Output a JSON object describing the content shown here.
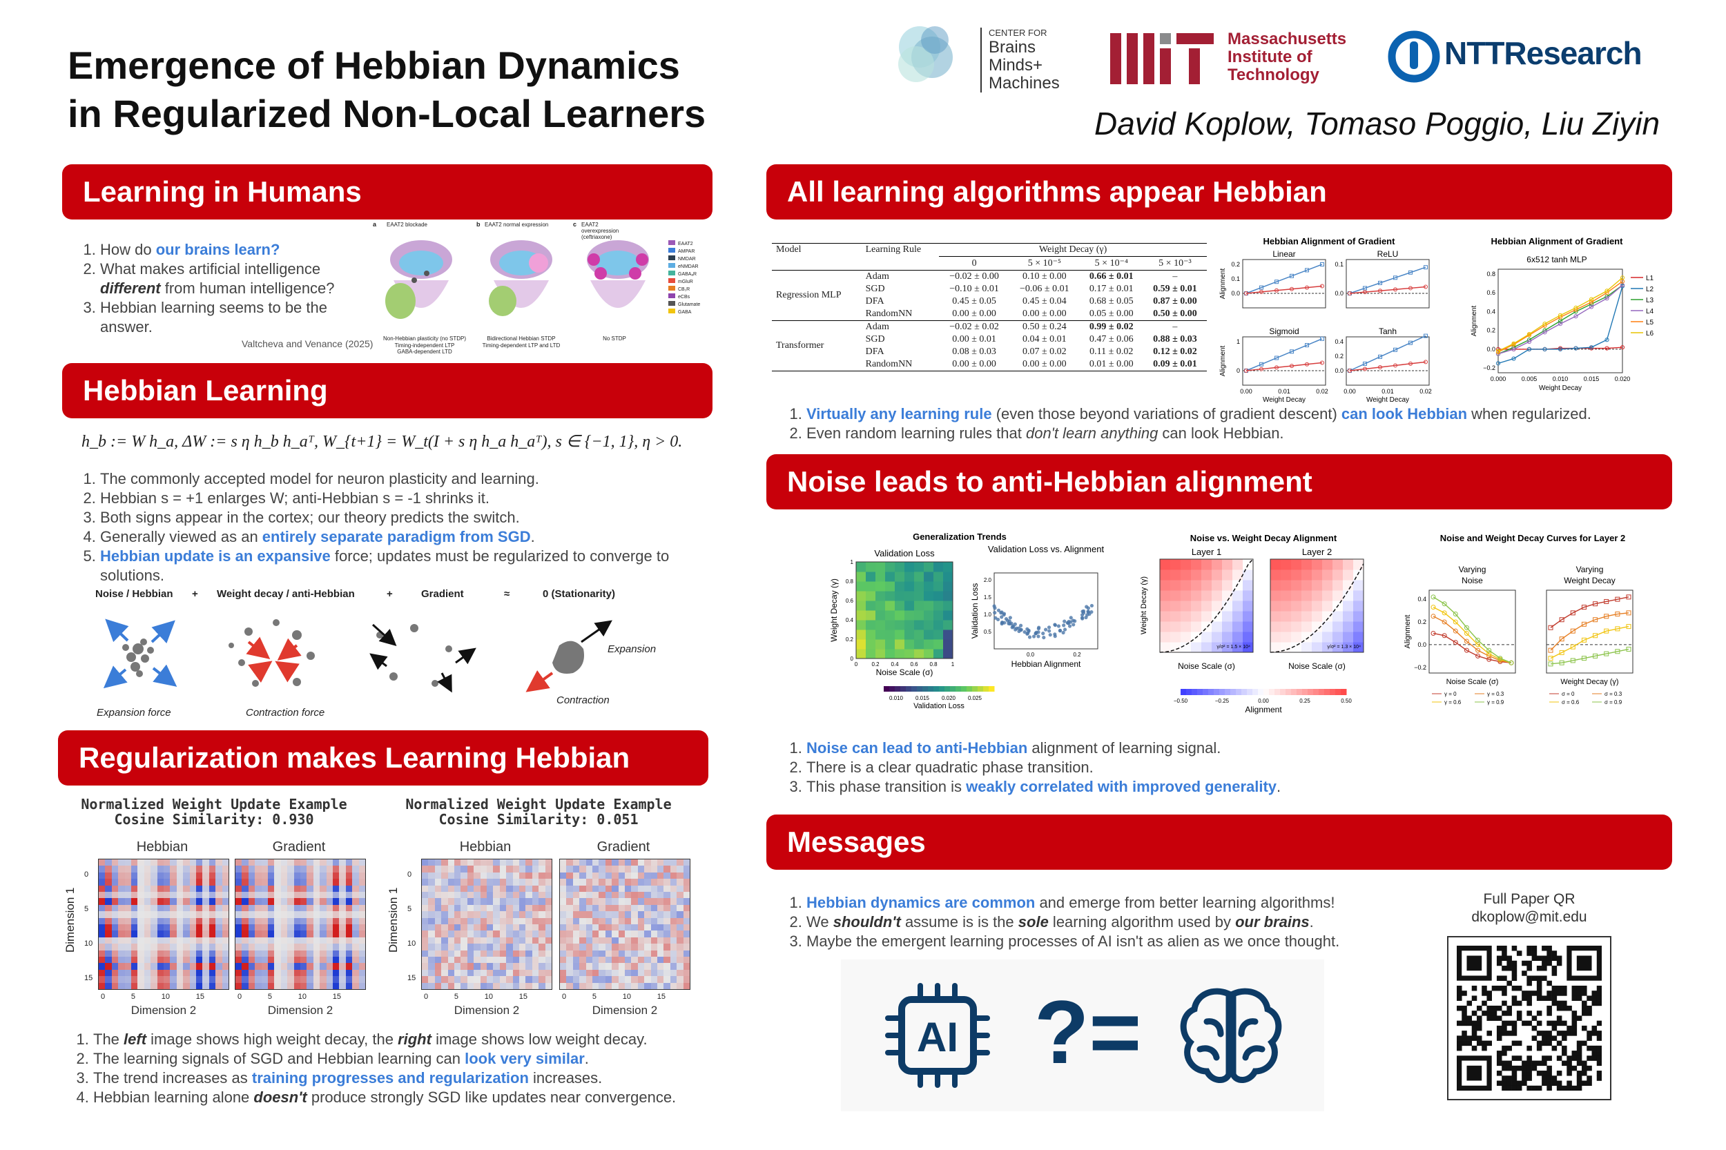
{
  "header": {
    "title_line1": "Emergence of Hebbian Dynamics",
    "title_line2": "in Regularized Non-Local Learners",
    "authors": "David Koplow, Tomaso Poggio, Liu Ziyin",
    "cbmm": [
      "CENTER FOR",
      "Brains",
      "Minds+",
      "Machines"
    ],
    "mit": [
      "Massachusetts",
      "Institute of",
      "Technology"
    ],
    "ntt": "NTTResearch"
  },
  "humans": {
    "heading": "Learning in Humans",
    "items": [
      {
        "pre": "How do ",
        "hl": "our brains learn?",
        "post": ""
      },
      {
        "pre": "What makes artificial intelligence ",
        "bi": "different",
        "post": " from human intelligence?"
      },
      {
        "pre": "Hebbian learning seems to be the answer.",
        "post": ""
      }
    ],
    "fig_labels": [
      "a",
      "b",
      "c"
    ],
    "fig_titles": [
      "EAAT2 blockade",
      "EAAT2 normal expression",
      "EAAT2 overexpression (ceftriaxone)"
    ],
    "fig_captions": [
      "Non-Hebbian plasticity (no STDP)",
      "Bidirectional Hebbian STDP",
      "No STDP"
    ],
    "fig_sub": [
      "Timing-independent LTP",
      "Timing-dependent LTP and LTD"
    ],
    "fig_sub2": "GABA-dependent LTD",
    "legend": [
      "EAAT2",
      "AMPAR",
      "NMDAR",
      "eNMDAR",
      "GABAₐR",
      "mGluR",
      "CB₁R",
      "eCBs",
      "Glutamate",
      "GABA"
    ],
    "citation": "Valtcheva and Venance (2025)"
  },
  "hebbian": {
    "heading": "Hebbian Learning",
    "equation": "h_b := W h_a,   ΔW := s η h_b h_aᵀ,   W_{t+1} = W_t(I + s η h_a h_aᵀ),   s ∈ {−1, 1}, η > 0.",
    "items": [
      "The commonly accepted model for neuron plasticity and learning.",
      "Hebbian s = +1 enlarges W; anti-Hebbian s = -1 shrinks it.",
      "Both signs appear in the cortex; our theory predicts the switch."
    ],
    "item4_pre": "Generally viewed as an ",
    "item4_hl": "entirely separate paradigm from SGD",
    "item4_post": ".",
    "item5_hl": "Hebbian update is an expansive",
    "item5_post": " force; updates must be regularized to converge to solutions.",
    "diagram": {
      "labels": [
        "Noise / Hebbian",
        "+",
        "Weight decay / anti-Hebbian",
        "+",
        "Gradient",
        "≈",
        "0 (Stationarity)"
      ],
      "captions": [
        "Expansion force",
        "Contraction force",
        "Expansion",
        "Contraction"
      ]
    }
  },
  "regularization": {
    "heading": "Regularization makes Learning Hebbian",
    "left_title": "Normalized Weight Update Example",
    "left_sim": "Cosine Similarity: 0.930",
    "right_title": "Normalized Weight Update Example",
    "right_sim": "Cosine Similarity: 0.051",
    "sub": [
      "Hebbian",
      "Gradient"
    ],
    "xlabel": "Dimension 2",
    "ylabel": "Dimension 1",
    "yticks": [
      "0",
      "5",
      "10",
      "15"
    ],
    "xticks": [
      "0",
      "5",
      "10",
      "15"
    ],
    "items": [
      {
        "a": "The ",
        "b": "left",
        "c": " image shows high weight decay, the ",
        "d": "right",
        "e": " image shows low weight decay."
      },
      {
        "a": "The learning signals of SGD and Hebbian learning can ",
        "hl": "look very similar",
        "e": "."
      },
      {
        "a": "The trend increases as ",
        "hl": "training progresses and regularization",
        "e": " increases."
      },
      {
        "a": "Hebbian learning alone ",
        "b": "doesn't",
        "e": " produce strongly SGD like updates near convergence."
      }
    ]
  },
  "all": {
    "heading": "All learning algorithms appear Hebbian",
    "table": {
      "cols": [
        "Model",
        "Learning Rule",
        "Weight Decay (γ)"
      ],
      "wd": [
        "0",
        "5 × 10⁻⁵",
        "5 × 10⁻⁴",
        "5 × 10⁻³"
      ],
      "groups": [
        {
          "model": "Regression MLP",
          "rows": [
            [
              "Adam",
              "−0.02 ± 0.00",
              "0.10 ± 0.00",
              "0.66 ± 0.01",
              "–"
            ],
            [
              "SGD",
              "−0.10 ± 0.01",
              "−0.06 ± 0.01",
              "0.17 ± 0.01",
              "0.59 ± 0.01"
            ],
            [
              "DFA",
              "0.45 ± 0.05",
              "0.45 ± 0.04",
              "0.68 ± 0.05",
              "0.87 ± 0.00"
            ],
            [
              "RandomNN",
              "0.00 ± 0.00",
              "0.00 ± 0.00",
              "0.05 ± 0.00",
              "0.50 ± 0.00"
            ]
          ]
        },
        {
          "model": "Transformer",
          "rows": [
            [
              "Adam",
              "−0.02 ± 0.02",
              "0.50 ± 0.24",
              "0.99 ± 0.02",
              "–"
            ],
            [
              "SGD",
              "0.00 ± 0.01",
              "0.04 ± 0.01",
              "0.47 ± 0.06",
              "0.88 ± 0.03"
            ],
            [
              "DFA",
              "0.08 ± 0.03",
              "0.07 ± 0.02",
              "0.11 ± 0.02",
              "0.12 ± 0.02"
            ],
            [
              "RandomNN",
              "0.00 ± 0.00",
              "0.00 ± 0.00",
              "0.01 ± 0.00",
              "0.09 ± 0.01"
            ]
          ]
        }
      ]
    },
    "items": [
      {
        "hl1": "Virtually any learning rule",
        "mid": " (even those beyond variations of gradient descent) ",
        "hl2": "can look Hebbian",
        "post": " when regularized."
      },
      {
        "pre": "Even random learning rules that ",
        "it": "don't learn anything",
        "post": " can look Hebbian."
      }
    ]
  },
  "noise": {
    "heading": "Noise leads to anti-Hebbian alignment",
    "items": [
      {
        "hl": "Noise can lead to anti-Hebbian",
        "post": " alignment of learning signal."
      },
      {
        "pre": "There is a clear quadratic phase transition."
      },
      {
        "pre": "This phase transition is ",
        "hl": "weakly correlated with improved generality",
        "post": "."
      }
    ]
  },
  "messages": {
    "heading": "Messages",
    "items": [
      {
        "hl": "Hebbian dynamics are common",
        "post": " and emerge from better learning algorithms!"
      },
      {
        "a": "We ",
        "b": "shouldn't",
        "c": " assume is is the ",
        "d": "sole",
        "e": " learning algorithm used by ",
        "f": "our brains",
        "g": "."
      },
      {
        "pre": "Maybe the emergent learning processes of AI isn't as alien as we once thought."
      }
    ],
    "qr_title": "Full  Paper QR",
    "email": "dkoplow@mit.edu",
    "ai_label": "AI",
    "q": "?=",
    "icons": [
      "chip-icon",
      "brain-icon"
    ]
  },
  "colors": {
    "red": "#c8000a",
    "blue": "#3b7dd8"
  },
  "chart_data": [
    {
      "type": "line",
      "title": "Hebbian Alignment of Gradient",
      "subplots": [
        "Linear",
        "ReLU",
        "Sigmoid",
        "Tanh"
      ],
      "xlabel": "Weight Decay",
      "ylabel": "Alignment",
      "xticks": [
        "0.00",
        "0.01",
        "0.02"
      ],
      "yticks_top": [
        "0.0",
        "0.1",
        "0.2"
      ],
      "yticks_right_top": [
        "0.0",
        "0.1"
      ],
      "yticks_bottom": [
        "0",
        "1"
      ],
      "yticks_right_bottom": [
        "0.0",
        "0.2",
        "0.4"
      ],
      "series": [
        {
          "color": "#4a86c6",
          "values": [
            0.0,
            0.04,
            0.08,
            0.12,
            0.16,
            0.2
          ]
        },
        {
          "color": "#d63b3b",
          "values": [
            0.0,
            0.01,
            0.02,
            0.03,
            0.04,
            0.05
          ]
        }
      ]
    },
    {
      "type": "line",
      "title": "Hebbian Alignment of Gradient",
      "subtitle": "6x512 tanh MLP",
      "xlabel": "Weight Decay",
      "ylabel": "Alignment",
      "xticks": [
        "0.000",
        "0.005",
        "0.010",
        "0.015",
        "0.020"
      ],
      "yticks": [
        "−0.2",
        "0.0",
        "0.2",
        "0.4",
        "0.6",
        "0.8"
      ],
      "x": [
        0,
        0.0025,
        0.005,
        0.0075,
        0.01,
        0.0125,
        0.015,
        0.0175,
        0.02
      ],
      "series": [
        {
          "name": "L1",
          "color": "#d62728",
          "values": [
            0,
            0,
            0,
            0,
            0.01,
            0.01,
            0.01,
            0.01,
            0.02
          ]
        },
        {
          "name": "L2",
          "color": "#1f77b4",
          "values": [
            -0.15,
            -0.1,
            0,
            0,
            0,
            0.01,
            0.02,
            0.1,
            0.67
          ]
        },
        {
          "name": "L3",
          "color": "#2ca02c",
          "values": [
            -0.05,
            0.02,
            0.1,
            0.2,
            0.3,
            0.4,
            0.48,
            0.56,
            0.68
          ]
        },
        {
          "name": "L4",
          "color": "#9467bd",
          "values": [
            -0.05,
            0.0,
            0.08,
            0.18,
            0.27,
            0.35,
            0.45,
            0.54,
            0.68
          ]
        },
        {
          "name": "L5",
          "color": "#ff7f0e",
          "values": [
            -0.03,
            0.05,
            0.15,
            0.25,
            0.34,
            0.42,
            0.5,
            0.6,
            0.72
          ]
        },
        {
          "name": "L6",
          "color": "#e8c400",
          "values": [
            -0.02,
            0.06,
            0.16,
            0.27,
            0.36,
            0.44,
            0.53,
            0.62,
            0.76
          ]
        }
      ]
    },
    {
      "type": "heatmap",
      "title": "Generalization Trends",
      "subtitle": "Validation Loss",
      "xlabel": "Noise Scale (σ)",
      "ylabel": "Weight Decay (γ)",
      "xticks": [
        "0",
        "0.2",
        "0.4",
        "0.6",
        "0.8",
        "1"
      ],
      "yticks": [
        "0",
        "0.2",
        "0.4",
        "0.6",
        "0.8",
        "1"
      ],
      "colorbar": {
        "label": "Validation Loss",
        "ticks": [
          "0.010",
          "0.015",
          "0.020",
          "0.025"
        ]
      }
    },
    {
      "type": "scatter",
      "title": "Validation Loss vs. Alignment",
      "xlabel": "Hebbian Alignment",
      "ylabel": "Validation Loss",
      "xticks": [
        "0.0",
        "0.2"
      ],
      "yticks": [
        "0.5",
        "1.0",
        "1.5",
        "2.0"
      ]
    },
    {
      "type": "heatmap",
      "title": "Noise vs. Weight Decay Alignment",
      "subplots": [
        "Layer 1",
        "Layer 2"
      ],
      "xlabel": "Noise Scale (σ)",
      "ylabel": "Weight Decay (γ)",
      "legend": [
        "γ/σ² = 1.5 × 10⁴",
        "γ/σ² = 1.3 × 10⁴"
      ],
      "colorbar": {
        "label": "Alignment",
        "ticks": [
          "−0.50",
          "−0.25",
          "0.00",
          "0.25",
          "0.50"
        ]
      }
    },
    {
      "type": "line",
      "title": "Noise and Weight Decay Curves for Layer 2",
      "subplots": [
        "Varying Noise",
        "Varying Weight Decay"
      ],
      "xlabels": [
        "Noise Scale (σ)",
        "Weight Decay (γ)"
      ],
      "ylabel": "Alignment",
      "yticks": [
        "−0.2",
        "0.0",
        "0.2",
        "0.4"
      ],
      "legend_left": [
        "γ = 0",
        "γ = 0.3",
        "γ = 0.6",
        "γ = 0.9"
      ],
      "legend_right": [
        "σ = 0",
        "σ = 0.3",
        "σ = 0.6",
        "σ = 0.9"
      ],
      "left_series": [
        {
          "color": "#c0392b",
          "values": [
            0.1,
            0.08,
            0.02,
            -0.05,
            -0.1,
            -0.13,
            -0.15,
            -0.16
          ]
        },
        {
          "color": "#e67e22",
          "values": [
            0.25,
            0.2,
            0.12,
            0.03,
            -0.05,
            -0.1,
            -0.14,
            -0.16
          ]
        },
        {
          "color": "#f1c40f",
          "values": [
            0.33,
            0.28,
            0.2,
            0.1,
            0.0,
            -0.08,
            -0.13,
            -0.16
          ]
        },
        {
          "color": "#8bc34a",
          "values": [
            0.42,
            0.36,
            0.27,
            0.15,
            0.04,
            -0.05,
            -0.12,
            -0.16
          ]
        }
      ],
      "right_series": [
        {
          "color": "#c0392b",
          "values": [
            0.15,
            0.22,
            0.28,
            0.33,
            0.36,
            0.38,
            0.4,
            0.42
          ]
        },
        {
          "color": "#e67e22",
          "values": [
            -0.05,
            0.05,
            0.12,
            0.18,
            0.22,
            0.25,
            0.27,
            0.28
          ]
        },
        {
          "color": "#f1c40f",
          "values": [
            -0.12,
            -0.07,
            -0.02,
            0.04,
            0.08,
            0.12,
            0.14,
            0.16
          ]
        },
        {
          "color": "#8bc34a",
          "values": [
            -0.17,
            -0.16,
            -0.14,
            -0.12,
            -0.1,
            -0.08,
            -0.06,
            -0.04
          ]
        }
      ]
    }
  ]
}
